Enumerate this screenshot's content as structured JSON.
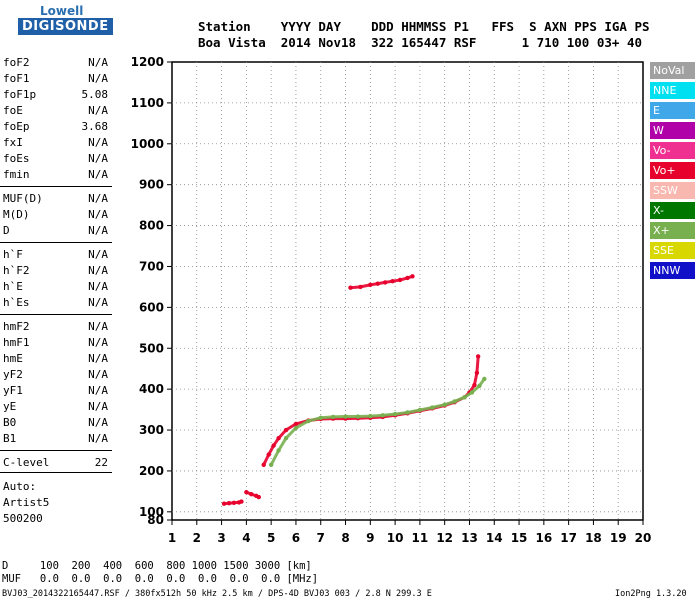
{
  "logo": {
    "top": "Lowell",
    "main": "DIGISONDE"
  },
  "header": {
    "line1": "Station    YYYY DAY    DDD HHMMSS P1   FFS  S AXN PPS IGA PS",
    "line2": "Boa Vista  2014 Nov18  322 165447 RSF      1 710 100 03+ 40"
  },
  "params": [
    {
      "name": "foF2",
      "value": "N/A"
    },
    {
      "name": "foF1",
      "value": "N/A"
    },
    {
      "name": "foF1p",
      "value": "5.08"
    },
    {
      "name": "foE",
      "value": "N/A"
    },
    {
      "name": "foEp",
      "value": "3.68"
    },
    {
      "name": "fxI",
      "value": "N/A"
    },
    {
      "name": "foEs",
      "value": "N/A"
    },
    {
      "name": "fmin",
      "value": "N/A"
    },
    {
      "name": "MUF(D)",
      "value": "N/A"
    },
    {
      "name": "M(D)",
      "value": "N/A"
    },
    {
      "name": "D",
      "value": "N/A"
    },
    {
      "name": "h`F",
      "value": "N/A"
    },
    {
      "name": "h`F2",
      "value": "N/A"
    },
    {
      "name": "h`E",
      "value": "N/A"
    },
    {
      "name": "h`Es",
      "value": "N/A"
    },
    {
      "name": "hmF2",
      "value": "N/A"
    },
    {
      "name": "hmF1",
      "value": "N/A"
    },
    {
      "name": "hmE",
      "value": "N/A"
    },
    {
      "name": "yF2",
      "value": "N/A"
    },
    {
      "name": "yF1",
      "value": "N/A"
    },
    {
      "name": "yE",
      "value": "N/A"
    },
    {
      "name": "B0",
      "value": "N/A"
    },
    {
      "name": "B1",
      "value": "N/A"
    },
    {
      "name": "C-level",
      "value": "22"
    }
  ],
  "auto": {
    "line1": "Auto:",
    "line2": "Artist5",
    "line3": "500200"
  },
  "legend": [
    {
      "label": "NoVal",
      "color": "#a0a0a0"
    },
    {
      "label": "NNE",
      "color": "#00e0f0"
    },
    {
      "label": "E",
      "color": "#40a8e8"
    },
    {
      "label": "W",
      "color": "#b000a8"
    },
    {
      "label": "Vo-",
      "color": "#f03090"
    },
    {
      "label": "Vo+",
      "color": "#e8002c"
    },
    {
      "label": "SSW",
      "color": "#f8b8b0"
    },
    {
      "label": "X-",
      "color": "#007800"
    },
    {
      "label": "X+",
      "color": "#78b050"
    },
    {
      "label": "SSE",
      "color": "#d8d800"
    },
    {
      "label": "NNW",
      "color": "#1010c8"
    }
  ],
  "footer": {
    "d_line": "D     100  200  400  600  800 1000 1500 3000 [km]",
    "muf_line": "MUF   0.0  0.0  0.0  0.0  0.0  0.0  0.0  0.0 [MHz]",
    "file_line": "BVJ03_2014322165447.RSF / 380fx512h 50 kHz 2.5 km / DPS-4D BVJ03 003 / 2.8 N 299.3 E",
    "version": "Ion2Png 1.3.20"
  },
  "chart_data": {
    "type": "scatter",
    "xlim": [
      1,
      20
    ],
    "ylim": [
      80,
      1200
    ],
    "x_ticks": [
      1,
      2,
      3,
      4,
      5,
      6,
      7,
      8,
      9,
      10,
      11,
      12,
      13,
      14,
      15,
      16,
      17,
      18,
      19,
      20
    ],
    "y_ticks": [
      80,
      100,
      200,
      300,
      400,
      500,
      600,
      700,
      800,
      900,
      1000,
      1100,
      1200
    ],
    "grid": "dotted",
    "traces": [
      {
        "trace": "F-layer O trace",
        "color": "#e8002c",
        "x": [
          4.7,
          4.9,
          5.1,
          5.3,
          5.6,
          6.0,
          6.5,
          7.0,
          7.5,
          8.0,
          8.5,
          9.0,
          9.5,
          10.0,
          10.5,
          11.0,
          11.5,
          12.0,
          12.4,
          12.8,
          13.0,
          13.2,
          13.3,
          13.35
        ],
        "y": [
          215,
          240,
          262,
          280,
          300,
          315,
          323,
          327,
          328,
          328,
          329,
          330,
          332,
          336,
          341,
          347,
          353,
          360,
          368,
          380,
          392,
          410,
          440,
          480
        ]
      },
      {
        "trace": "F-layer X trace",
        "color": "#78b050",
        "x": [
          5.0,
          5.3,
          5.6,
          6.0,
          6.5,
          7.0,
          7.5,
          8.0,
          8.5,
          9.0,
          9.5,
          10.0,
          10.5,
          11.0,
          11.5,
          12.0,
          12.4,
          12.8,
          13.1,
          13.4,
          13.6
        ],
        "y": [
          215,
          250,
          280,
          305,
          322,
          330,
          332,
          333,
          333,
          334,
          336,
          339,
          343,
          349,
          355,
          362,
          370,
          380,
          392,
          408,
          425
        ]
      },
      {
        "trace": "multiple reflection",
        "color": "#e8002c",
        "x": [
          8.2,
          8.6,
          9.0,
          9.3,
          9.6,
          9.9,
          10.2,
          10.5,
          10.7
        ],
        "y": [
          648,
          650,
          655,
          658,
          661,
          664,
          667,
          672,
          676
        ]
      },
      {
        "trace": "low echo",
        "color": "#e8002c",
        "x": [
          3.1,
          3.3,
          3.5,
          3.7,
          3.8
        ],
        "y": [
          120,
          121,
          122,
          123,
          125
        ]
      },
      {
        "trace": "E-region echo",
        "color": "#e8002c",
        "x": [
          4.0,
          4.2,
          4.4,
          4.5
        ],
        "y": [
          148,
          143,
          139,
          136
        ]
      }
    ]
  }
}
